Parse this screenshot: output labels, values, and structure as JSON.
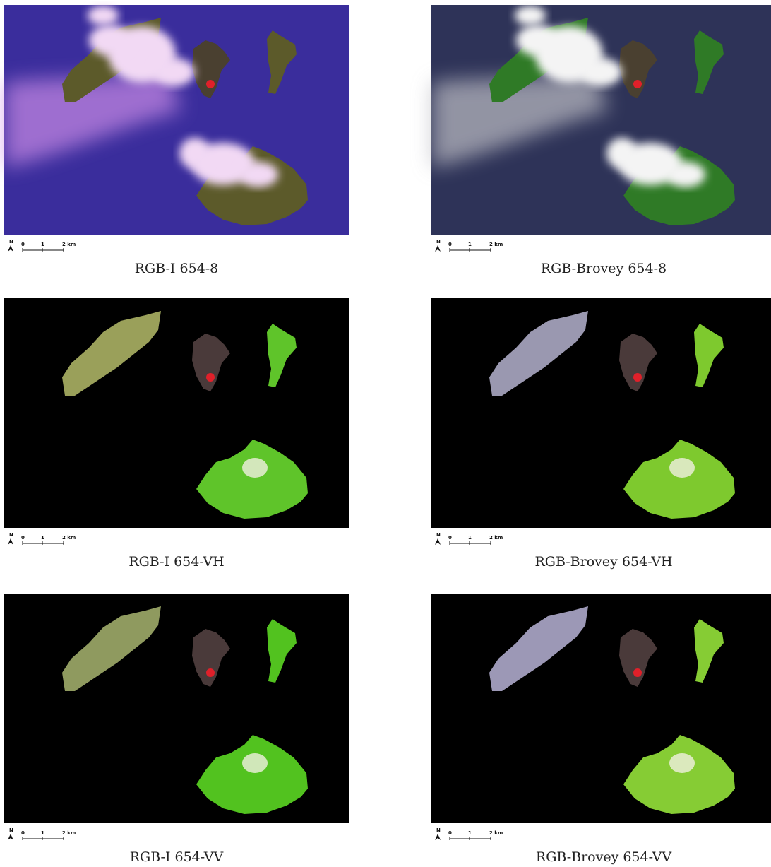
{
  "panels": [
    {
      "caption": "RGB-I 654-8",
      "north": "N",
      "scale_labels": [
        "0",
        "1",
        "2 km"
      ]
    },
    {
      "caption": "RGB-Brovey 654-8",
      "north": "N",
      "scale_labels": [
        "0",
        "1",
        "2 km"
      ]
    },
    {
      "caption": "RGB-I 654-VH",
      "north": "N",
      "scale_labels": [
        "0",
        "1",
        "2 km"
      ]
    },
    {
      "caption": "RGB-Brovey 654-VH",
      "north": "N",
      "scale_labels": [
        "0",
        "1",
        "2 km"
      ]
    },
    {
      "caption": "RGB-I 654-VV",
      "north": "N",
      "scale_labels": [
        "0",
        "1",
        "2 km"
      ]
    },
    {
      "caption": "RGB-Brovey 654-VV",
      "north": "N",
      "scale_labels": [
        "0",
        "1",
        "2 km"
      ]
    }
  ]
}
